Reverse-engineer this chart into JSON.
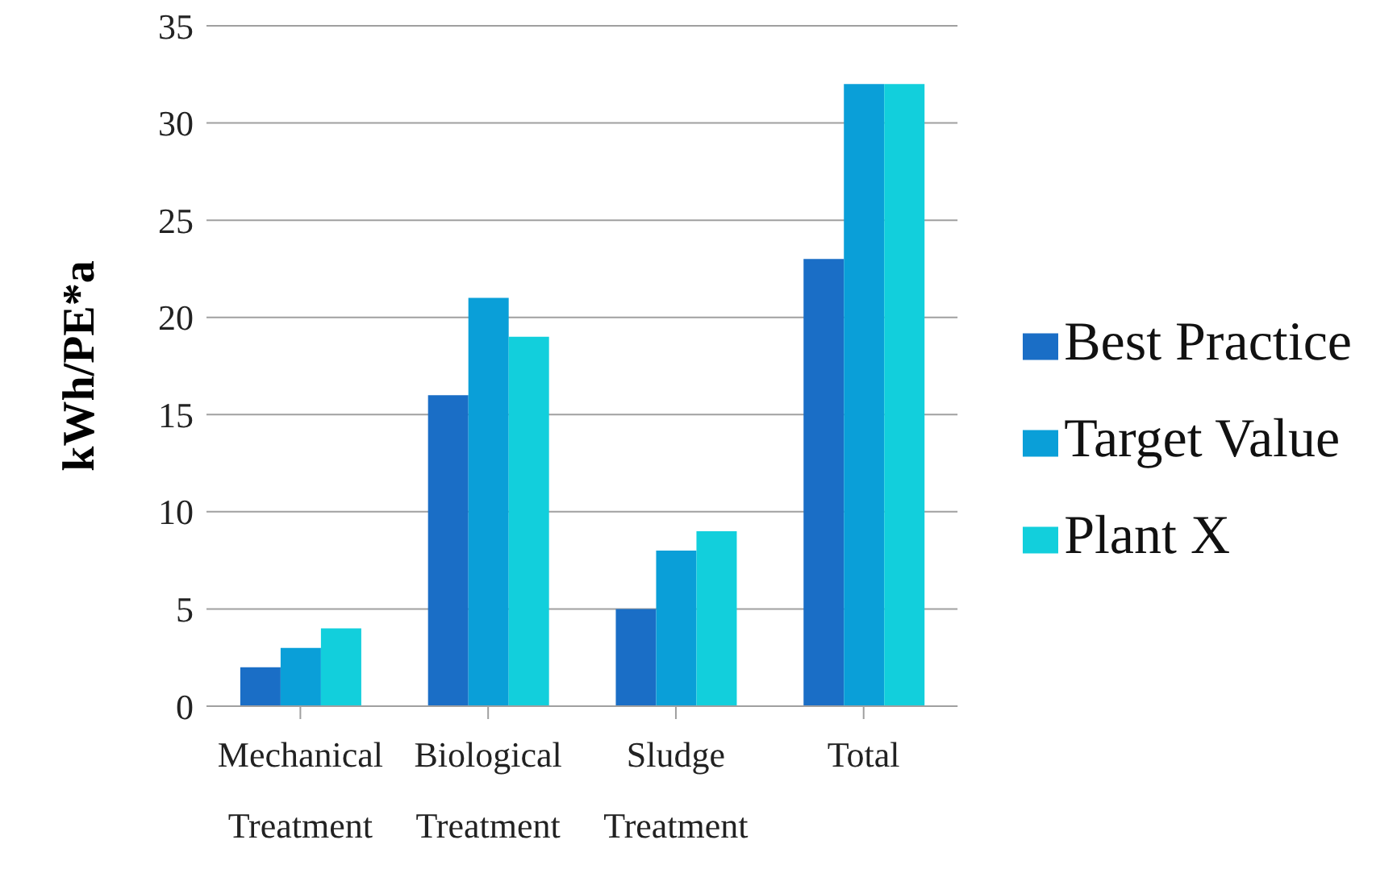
{
  "chart_data": {
    "type": "bar",
    "ylabel": "kWh/PE*a",
    "categories": [
      "Mechanical Treatment",
      "Biological Treatment",
      "Sludge Treatment",
      "Total"
    ],
    "series": [
      {
        "name": "Best Practice",
        "color": "#1a6ec6",
        "values": [
          2,
          16,
          5,
          23
        ]
      },
      {
        "name": "Target Value",
        "color": "#0a9fd8",
        "values": [
          3,
          21,
          8,
          32
        ]
      },
      {
        "name": "Plant X",
        "color": "#12cfdc",
        "values": [
          4,
          19,
          9,
          32
        ]
      }
    ],
    "ylim": [
      0,
      35
    ],
    "yticks": [
      0,
      5,
      10,
      15,
      20,
      25,
      30,
      35
    ],
    "grid": "y",
    "legend": "right"
  }
}
